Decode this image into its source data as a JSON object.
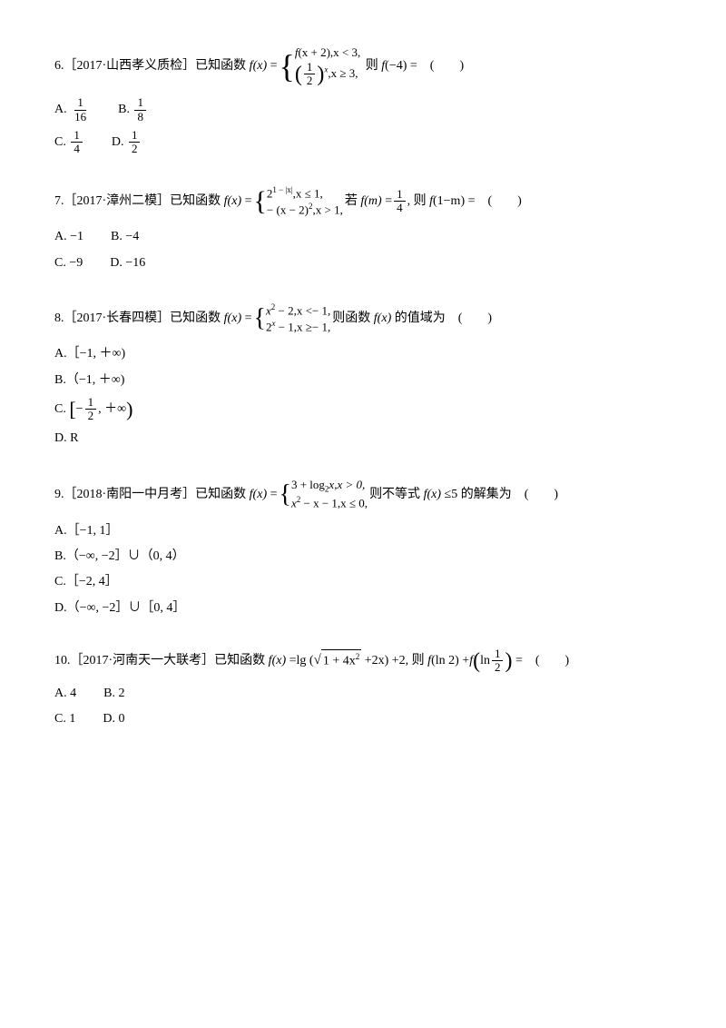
{
  "q6": {
    "num": "6.",
    "src": "［2017·山西孝义质检］",
    "stem1": "已知函数 ",
    "fx": "f",
    "x": "x",
    "eq": " =",
    "case1a": "f",
    "case1b": "(x + 2),x < 3,",
    "case2_frac_n": "1",
    "case2_frac_d": "2",
    "case2_exp": "x",
    "case2_tail": ",x ≥ 3,",
    "stem2": " 则 ",
    "f4": "f",
    "arg4": "(−4)",
    "stem3": " =　(　　)",
    "optA": "A.",
    "a_n": "1",
    "a_d": "16",
    "optB": "B.",
    "b_n": "1",
    "b_d": "8",
    "optC": "C.",
    "c_n": "1",
    "c_d": "4",
    "optD": "D.",
    "d_n": "1",
    "d_d": "2"
  },
  "q7": {
    "num": "7.",
    "src": "［2017·漳州二模］",
    "stem1": "已知函数 ",
    "case1": "2",
    "case1_exp": "1 − |x|",
    "case1_tail": ",x ≤ 1,",
    "case2": "− (x − 2)",
    "case2_exp": "2",
    "case2_tail": ",x > 1,",
    "mid": "若 ",
    "fm": "f",
    "m": "m",
    "eqv": " =",
    "frac_n": "1",
    "frac_d": "4",
    "mid2": ", 则 ",
    "f1m": "f",
    "arg1m": "(1−m)",
    "tail": " =　(　　)",
    "optA": "A. −1",
    "optB": "B. −4",
    "optC": "C. −9",
    "optD": "D. −16"
  },
  "q8": {
    "num": "8.",
    "src": "［2017·长春四模］",
    "stem1": "已知函数 ",
    "case1": "x",
    "case1_exp": "2",
    "case1_tail": " − 2,x <− 1,",
    "case2": "2",
    "case2_exp": "x",
    "case2_tail": " − 1,x ≥− 1,",
    "stem2": "则函数 ",
    "fx2": "f",
    "x2": "x",
    "stem3": " 的值域为　(　　)",
    "optA": "A.［−1, ＋∞)",
    "optB": "B.（−1, ＋∞)",
    "optC_pre": "C.",
    "c_lb": "[",
    "c_neg": "−",
    "c_n": "1",
    "c_d": "2",
    "c_tail": ", ＋∞",
    "c_rb": ")",
    "optD": "D. R"
  },
  "q9": {
    "num": "9.",
    "src": "［2018·南阳一中月考］",
    "stem1": "已知函数 ",
    "case1": "3 + log",
    "case1_sub": "2",
    "case1_x": "x,x > 0,",
    "case2": "x",
    "case2_exp": "2",
    "case2_tail": " − x − 1,x ≤ 0,",
    "stem2": "则不等式 ",
    "fx": "f",
    "x": "x",
    "stem3": " ≤5 的解集为　(　　)",
    "optA": "A.［−1, 1］",
    "optB": "B.（−∞, −2］∪（0, 4）",
    "optC": "C.［−2, 4］",
    "optD": "D.（−∞, −2］∪［0, 4］"
  },
  "q10": {
    "num": "10.",
    "src": "［2017·河南天一大联考］",
    "stem1": "已知函数 ",
    "fx": "f",
    "x": "x",
    "eq": " =lg (",
    "sqrt_arg": "1 + 4x",
    "sqrt_exp": "2",
    "mid": " +2x) +2, 则 ",
    "fln2": "f",
    "ln2": "(ln 2)",
    "plus": " +",
    "f2": "f",
    "ln_frac_n": "1",
    "ln_frac_d": "2",
    "ln_pre": "ln",
    "tail": " =　(　　)",
    "optA": "A. 4",
    "optB": "B. 2",
    "optC": "C. 1",
    "optD": "D. 0"
  }
}
